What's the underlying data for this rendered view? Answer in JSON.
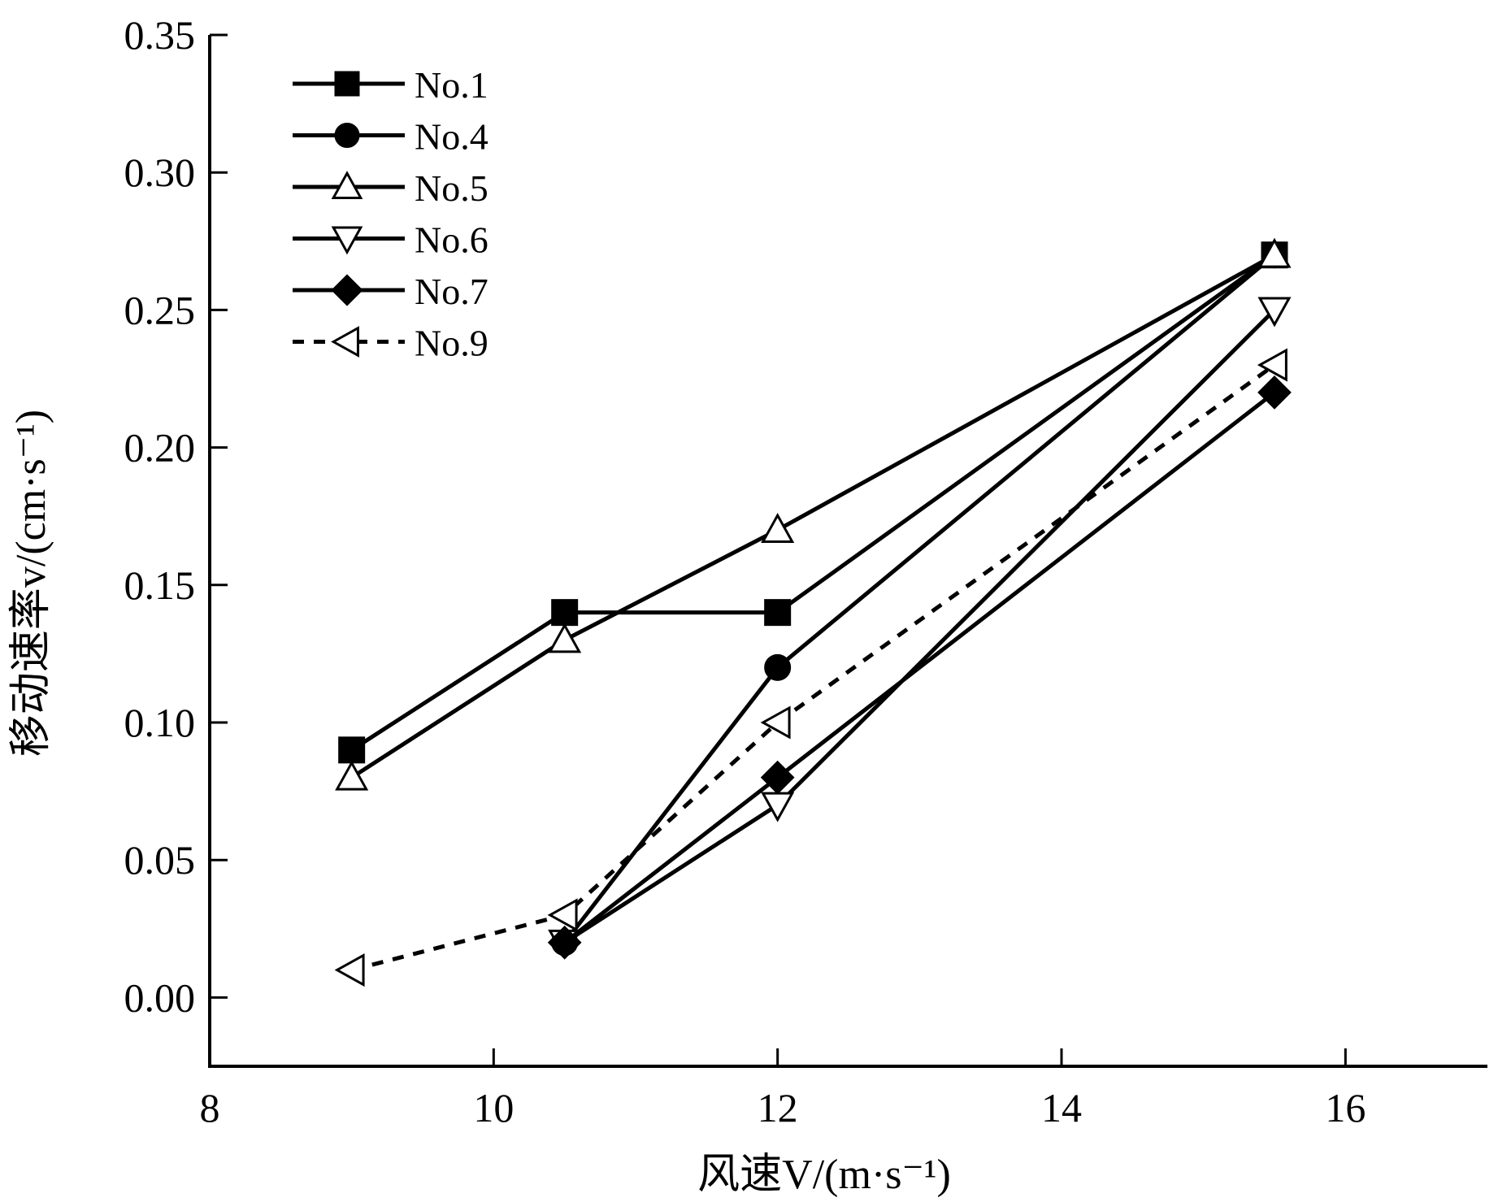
{
  "chart_data": {
    "type": "line",
    "title": "",
    "xlabel": "风速V/(m·s⁻¹)",
    "ylabel": "移动速率v/(cm·s⁻¹)",
    "xlim": [
      8,
      17
    ],
    "ylim": [
      -0.025,
      0.35
    ],
    "x_ticks": [
      "8",
      "10",
      "12",
      "14",
      "16"
    ],
    "y_ticks": [
      "0.00",
      "0.05",
      "0.10",
      "0.15",
      "0.20",
      "0.25",
      "0.30",
      "0.35"
    ],
    "grid": false,
    "legend_position": "top-left",
    "series": [
      {
        "name": "No.1",
        "marker": "square-filled",
        "dashed": false,
        "points": [
          [
            9,
            0.09
          ],
          [
            10.5,
            0.14
          ],
          [
            12,
            0.14
          ],
          [
            15.5,
            0.27
          ]
        ]
      },
      {
        "name": "No.4",
        "marker": "circle-filled",
        "dashed": false,
        "points": [
          [
            10.5,
            0.02
          ],
          [
            12,
            0.12
          ],
          [
            15.5,
            0.27
          ]
        ]
      },
      {
        "name": "No.5",
        "marker": "triangle-up-open",
        "dashed": false,
        "points": [
          [
            9,
            0.08
          ],
          [
            10.5,
            0.13
          ],
          [
            12,
            0.17
          ],
          [
            15.5,
            0.27
          ]
        ]
      },
      {
        "name": "No.6",
        "marker": "triangle-down-open",
        "dashed": false,
        "points": [
          [
            10.5,
            0.02
          ],
          [
            12,
            0.07
          ],
          [
            15.5,
            0.25
          ]
        ]
      },
      {
        "name": "No.7",
        "marker": "diamond-filled",
        "dashed": false,
        "points": [
          [
            10.5,
            0.02
          ],
          [
            12,
            0.08
          ],
          [
            15.5,
            0.22
          ]
        ]
      },
      {
        "name": "No.9",
        "marker": "triangle-left-open",
        "dashed": true,
        "points": [
          [
            9,
            0.01
          ],
          [
            10.5,
            0.03
          ],
          [
            12,
            0.1
          ],
          [
            15.5,
            0.23
          ]
        ]
      }
    ]
  }
}
